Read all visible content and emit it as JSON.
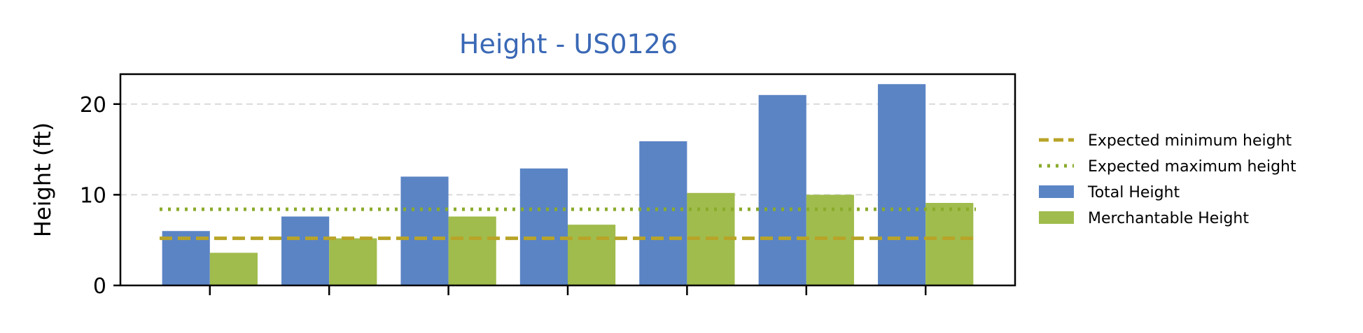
{
  "chart_data": {
    "type": "bar",
    "title": "Height - US0126",
    "xlabel": "",
    "ylabel": "Height (ft)",
    "ylim": [
      0,
      23.3
    ],
    "yticks": [
      0,
      10,
      20
    ],
    "categories": [
      "",
      "",
      "",
      "",
      "",
      "",
      ""
    ],
    "series": [
      {
        "name": "Total Height",
        "color": "#5b84c4",
        "values": [
          6.0,
          7.6,
          12.0,
          12.9,
          15.9,
          21.0,
          22.2
        ]
      },
      {
        "name": "Merchantable Height",
        "color": "#a0bc4c",
        "values": [
          3.6,
          5.2,
          7.6,
          6.7,
          10.2,
          10.0,
          9.1
        ]
      }
    ],
    "reference_lines": [
      {
        "name": "Expected minimum height",
        "value": 5.2,
        "style": "dashed",
        "color": "#b8a428"
      },
      {
        "name": "Expected maximum height",
        "value": 8.4,
        "style": "dotted",
        "color": "#8aab2c"
      }
    ],
    "grid": {
      "y": true,
      "x": false
    },
    "legend_position": "right",
    "title_color": "#3a68b5"
  }
}
